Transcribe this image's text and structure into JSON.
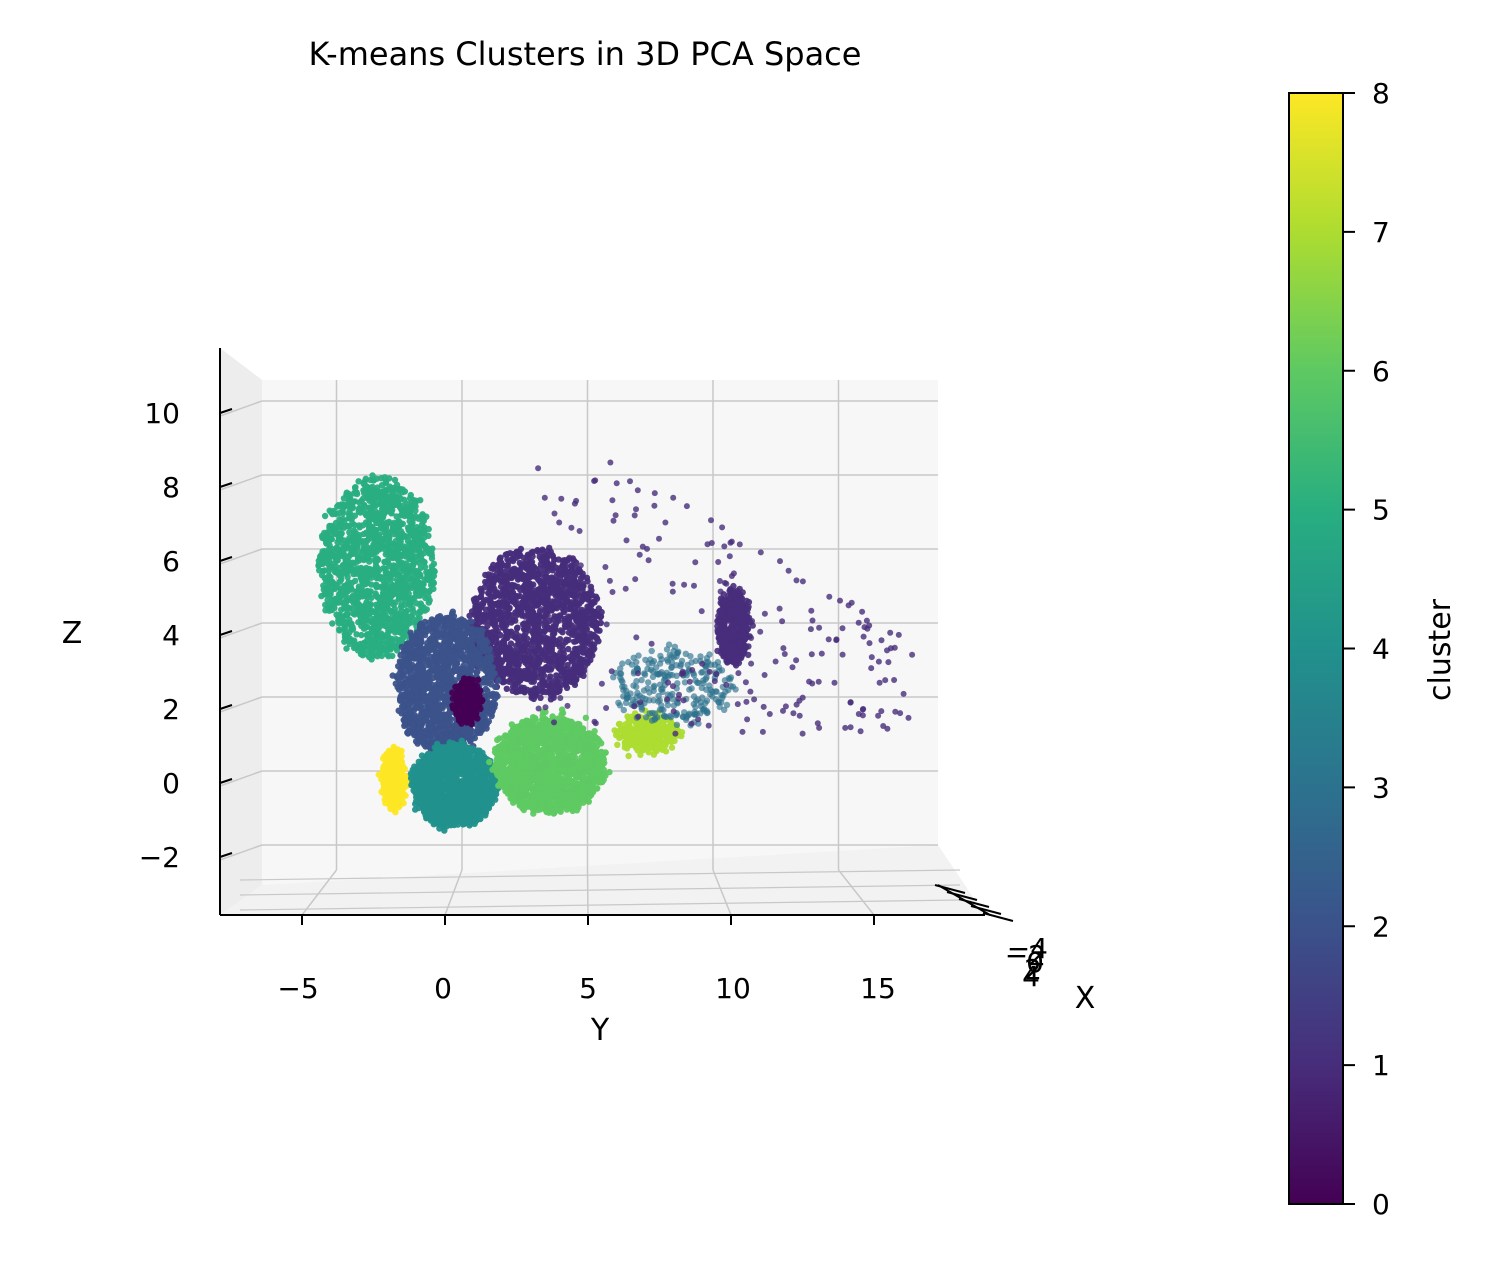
{
  "chart_data": {
    "type": "scatter",
    "title": "K-means Clusters in 3D PCA Space",
    "xlabel": "X",
    "ylabel": "Y",
    "zlabel": "Z",
    "colorbar_label": "cluster",
    "colormap": "viridis",
    "grid": true,
    "y_ticks": [
      "−5",
      "0",
      "5",
      "10",
      "15"
    ],
    "y_tick_values": [
      -5,
      0,
      5,
      10,
      15
    ],
    "ylim": [
      -8,
      18
    ],
    "z_ticks": [
      "−2",
      "0",
      "2",
      "4",
      "6",
      "8",
      "10"
    ],
    "z_tick_values": [
      -2,
      0,
      2,
      4,
      6,
      8,
      10
    ],
    "zlim": [
      -2.5,
      10.5
    ],
    "x_ticks": [
      "−4",
      "−2",
      "0",
      "2",
      "4"
    ],
    "colorbar_ticks": [
      "0",
      "1",
      "2",
      "3",
      "4",
      "5",
      "6",
      "7",
      "8"
    ],
    "colorbar_range": [
      0,
      8
    ],
    "palette": [
      "#440154",
      "#472d7b",
      "#3b528b",
      "#2c728e",
      "#21918c",
      "#28ae80",
      "#5ec962",
      "#addc30",
      "#fde725"
    ],
    "clusters": [
      {
        "cluster": 0,
        "center_y": 0.2,
        "center_z": 1.9,
        "spread_y": 0.5,
        "spread_z": 0.6
      },
      {
        "cluster": 1,
        "center_y": 2.9,
        "center_z": 4.0,
        "spread_y": 2.6,
        "spread_z": 2.0
      },
      {
        "cluster": 2,
        "center_y": -0.6,
        "center_z": 2.3,
        "spread_y": 2.0,
        "spread_z": 1.9
      },
      {
        "cluster": 3,
        "center_y": 8.5,
        "center_z": 2.3,
        "spread_y": 2.5,
        "spread_z": 1.0
      },
      {
        "cluster": 4,
        "center_y": -0.3,
        "center_z": -0.4,
        "spread_y": 1.7,
        "spread_z": 1.1
      },
      {
        "cluster": 5,
        "center_y": -3.4,
        "center_z": 5.5,
        "spread_y": 2.3,
        "spread_z": 2.4
      },
      {
        "cluster": 6,
        "center_y": 3.5,
        "center_z": 0.2,
        "spread_y": 2.2,
        "spread_z": 1.3
      },
      {
        "cluster": 7,
        "center_y": 7.4,
        "center_z": 1.0,
        "spread_y": 1.3,
        "spread_z": 0.5
      },
      {
        "cluster": 8,
        "center_y": -2.7,
        "center_z": -0.2,
        "spread_y": 0.5,
        "spread_z": 0.8
      }
    ],
    "outlier_cluster": {
      "cluster": 1,
      "center_y": 10.8,
      "center_z": 3.9,
      "spread_y": 0.6,
      "spread_z": 1.0
    }
  }
}
